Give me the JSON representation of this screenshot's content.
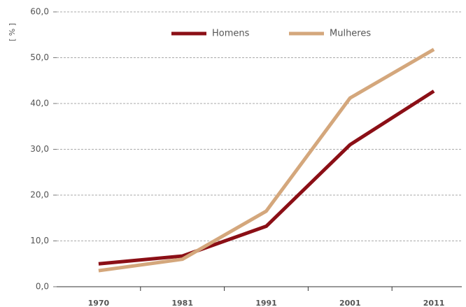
{
  "chart_data": {
    "type": "line",
    "y_label": "[ % ]",
    "categories": [
      "1970",
      "1981",
      "1991",
      "2001",
      "2011"
    ],
    "series": [
      {
        "name": "Homens",
        "color": "#8b0f16",
        "values": [
          5.0,
          6.7,
          13.2,
          31.0,
          42.7
        ]
      },
      {
        "name": "Mulheres",
        "color": "#d4a77c",
        "values": [
          3.5,
          6.0,
          16.5,
          41.2,
          51.8
        ]
      }
    ],
    "ylim": [
      0,
      60
    ],
    "yticks": [
      {
        "value": 0,
        "label": "0,0"
      },
      {
        "value": 10,
        "label": "10,0"
      },
      {
        "value": 20,
        "label": "20,0"
      },
      {
        "value": 30,
        "label": "30,0"
      },
      {
        "value": 40,
        "label": "40,0"
      },
      {
        "value": 50,
        "label": "50,0"
      },
      {
        "value": 60,
        "label": "60,0"
      }
    ],
    "grid": true,
    "legend_position": "top"
  }
}
